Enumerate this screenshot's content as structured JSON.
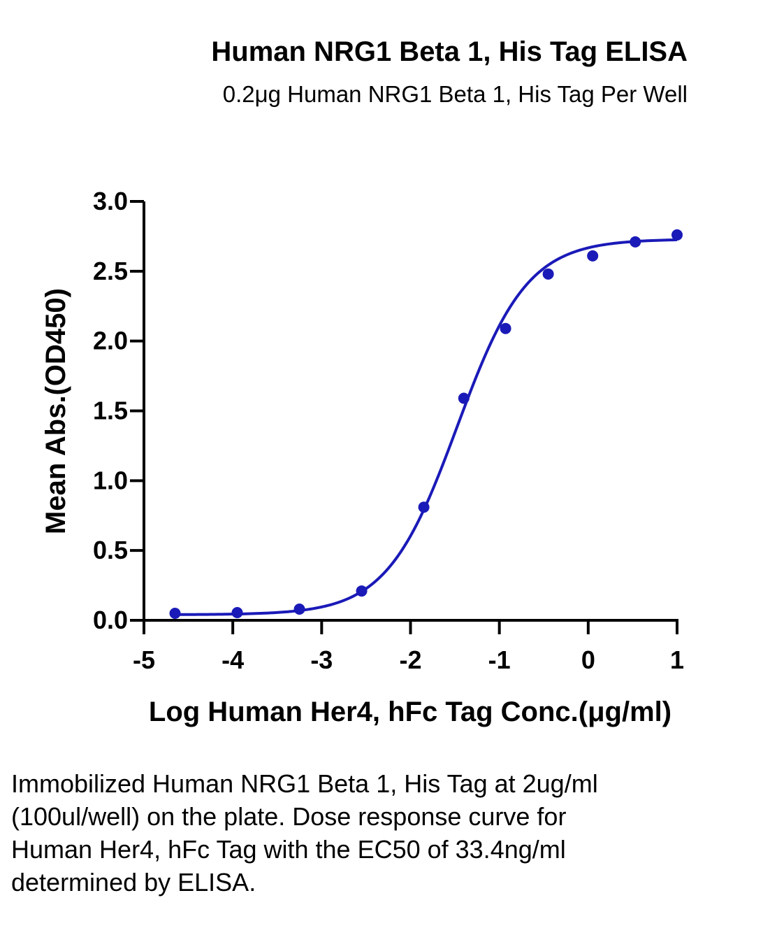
{
  "chart_data": {
    "type": "scatter",
    "title": "Human NRG1 Beta 1, His Tag ELISA",
    "subtitle": "0.2μg Human NRG1 Beta 1, His Tag Per Well",
    "xlabel": "Log Human Her4, hFc Tag Conc.(μg/ml)",
    "ylabel": "Mean Abs.(OD450)",
    "xlim": [
      -5,
      1
    ],
    "ylim": [
      0,
      3.0
    ],
    "x_ticks": [
      "-5",
      "-4",
      "-3",
      "-2",
      "-1",
      "0",
      "1"
    ],
    "x_tick_values": [
      -5,
      -4,
      -3,
      -2,
      -1,
      0,
      1
    ],
    "y_ticks": [
      "0.0",
      "0.5",
      "1.0",
      "1.5",
      "2.0",
      "2.5",
      "3.0"
    ],
    "y_tick_values": [
      0,
      0.5,
      1.0,
      1.5,
      2.0,
      2.5,
      3.0
    ],
    "grid": false,
    "series": [
      {
        "color": "#1a1ab8",
        "points": [
          {
            "x": -4.65,
            "y": 0.05
          },
          {
            "x": -3.95,
            "y": 0.055
          },
          {
            "x": -3.25,
            "y": 0.08
          },
          {
            "x": -2.55,
            "y": 0.21
          },
          {
            "x": -1.85,
            "y": 0.81
          },
          {
            "x": -1.4,
            "y": 1.59
          },
          {
            "x": -0.93,
            "y": 2.09
          },
          {
            "x": -0.45,
            "y": 2.48
          },
          {
            "x": 0.05,
            "y": 2.61
          },
          {
            "x": 0.53,
            "y": 2.71
          },
          {
            "x": 1.0,
            "y": 2.76
          }
        ],
        "fit": {
          "model": "4PL",
          "bottom": 0.04,
          "top": 2.73,
          "log_ec50": -1.476,
          "hill": 1.1
        }
      }
    ]
  },
  "caption": "Immobilized Human NRG1 Beta 1, His Tag at 2ug/ml (100ul/well) on the plate. Dose response curve for Human Her4, hFc Tag with the EC50 of 33.4ng/ml determined by ELISA."
}
